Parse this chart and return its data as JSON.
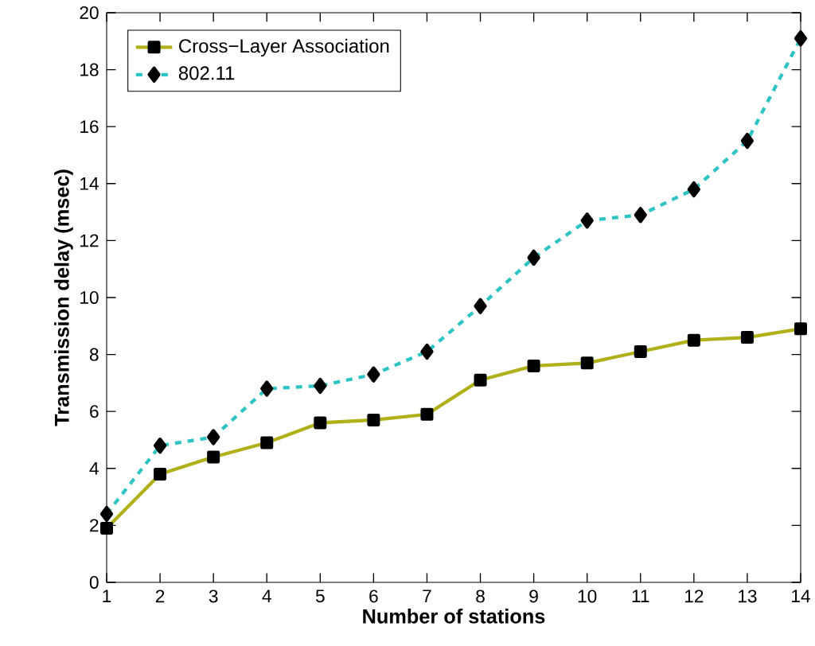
{
  "chart_data": {
    "type": "line",
    "xlabel": "Number of stations",
    "ylabel": "Transmission delay (msec)",
    "x": [
      1,
      2,
      3,
      4,
      5,
      6,
      7,
      8,
      9,
      10,
      11,
      12,
      13,
      14
    ],
    "series": [
      {
        "name": "Cross−Layer Association",
        "color": "#b0b01a",
        "marker": "square",
        "line_style": "solid",
        "values": [
          1.9,
          3.8,
          4.4,
          4.9,
          5.6,
          5.7,
          5.9,
          7.1,
          7.6,
          7.7,
          8.1,
          8.5,
          8.6,
          8.9
        ]
      },
      {
        "name": "802.11",
        "color": "#2ec4c4",
        "marker": "diamond",
        "line_style": "dashed",
        "values": [
          2.4,
          4.8,
          5.1,
          6.8,
          6.9,
          7.3,
          8.1,
          9.7,
          11.4,
          12.7,
          12.9,
          13.8,
          15.5,
          19.1
        ]
      }
    ],
    "xlim": [
      1,
      14
    ],
    "xticks": [
      1,
      2,
      3,
      4,
      5,
      6,
      7,
      8,
      9,
      10,
      11,
      12,
      13,
      14
    ],
    "ylim": [
      0,
      20
    ],
    "yticks": [
      0,
      2,
      4,
      6,
      8,
      10,
      12,
      14,
      16,
      18,
      20
    ],
    "grid": false,
    "legend": "top left"
  }
}
